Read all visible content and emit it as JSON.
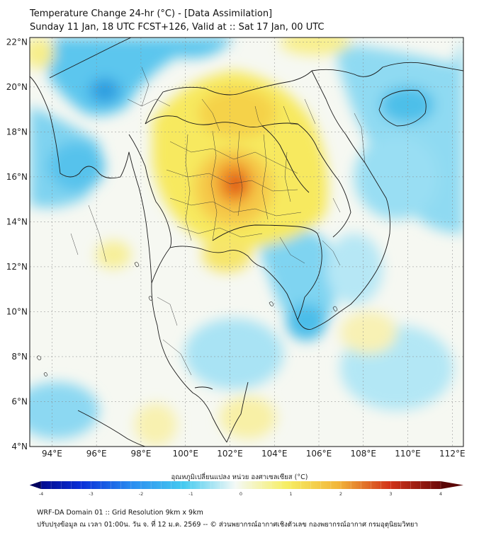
{
  "title": {
    "line1": "Temperature Change 24-hr (°C) - [Data Assimilation]",
    "line2": "Sunday 11 Jan, 18 UTC FCST+126, Valid at :: Sat 17 Jan, 00 UTC"
  },
  "map": {
    "lat_ticks": [
      "22°N",
      "20°N",
      "18°N",
      "16°N",
      "14°N",
      "12°N",
      "10°N",
      "8°N",
      "6°N",
      "4°N"
    ],
    "lat_values": [
      22,
      20,
      18,
      16,
      14,
      12,
      10,
      8,
      6,
      4
    ],
    "lon_ticks": [
      "94°E",
      "96°E",
      "98°E",
      "100°E",
      "102°E",
      "104°E",
      "106°E",
      "108°E",
      "110°E",
      "112°E"
    ],
    "lon_values": [
      94,
      96,
      98,
      100,
      102,
      104,
      106,
      108,
      110,
      112
    ],
    "extent": {
      "lon_min": 93.0,
      "lon_max": 112.5,
      "lat_min": 4.0,
      "lat_max": 22.2
    },
    "colors": {
      "warm_max": "#e03a10",
      "cool": "#49bde6",
      "neutral": "#f6f8f2",
      "grid": "#8a8a8a",
      "land_border": "#1a1a1a"
    }
  },
  "colorbar": {
    "label": "อุณหภูมิเปลี่ยนแปลง หน่วย องศาเซลเซียส (°C)",
    "min": -4,
    "max": 4,
    "tick_labels": [
      "-4",
      "-3",
      "-2",
      "-1",
      "0",
      "1",
      "2",
      "3",
      "4"
    ],
    "stops": [
      "#00007a",
      "#0a2fd8",
      "#2a8ef0",
      "#46cbf0",
      "#f4f9f6",
      "#f6ee62",
      "#f2b63a",
      "#d3341a",
      "#6e0a0a"
    ]
  },
  "footer": {
    "line1": "WRF-DA Domain 01 :: Grid Resolution 9km x 9km",
    "line2": "ปรับปรุงข้อมูล ณ เวลา 01:00น. วัน จ. ที่ 12 ม.ค. 2569 -- © ส่วนพยากรณ์อากาศเชิงตัวเลข กองพยากรณ์อากาศ กรมอุตุนิยมวิทยา"
  }
}
